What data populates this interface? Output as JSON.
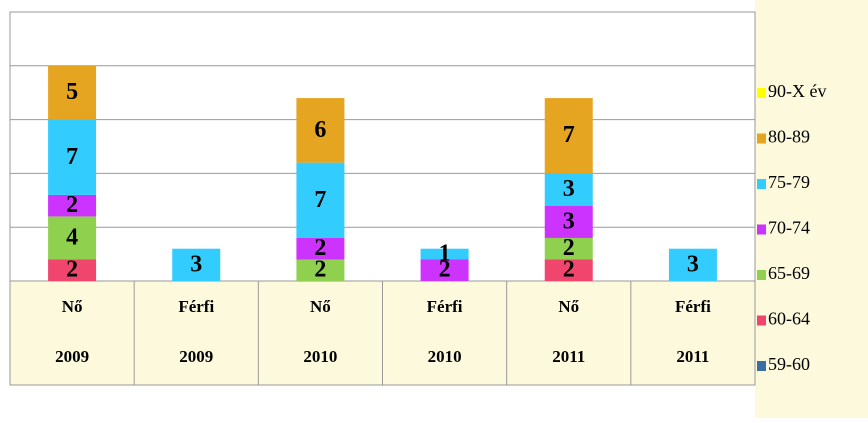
{
  "chart_data": {
    "type": "stacked_bar",
    "categories": [
      [
        "Nő",
        "2009"
      ],
      [
        "Férfi",
        "2009"
      ],
      [
        "Nő",
        "2010"
      ],
      [
        "Férfi",
        "2010"
      ],
      [
        "Nő",
        "2011"
      ],
      [
        "Férfi",
        "2011"
      ]
    ],
    "series": [
      {
        "name": "90-X év",
        "color": "#ffff00",
        "values": [
          null,
          null,
          null,
          null,
          null,
          null
        ]
      },
      {
        "name": "80-89",
        "color": "#e6a520",
        "values": [
          5,
          null,
          6,
          null,
          7,
          null
        ]
      },
      {
        "name": "75-79",
        "color": "#33ccff",
        "values": [
          7,
          3,
          7,
          1,
          3,
          3
        ]
      },
      {
        "name": "70-74",
        "color": "#cc33ff",
        "values": [
          2,
          null,
          2,
          2,
          3,
          null
        ]
      },
      {
        "name": "65-69",
        "color": "#8fd14f",
        "values": [
          4,
          null,
          2,
          null,
          2,
          null
        ]
      },
      {
        "name": "60-64",
        "color": "#f0466e",
        "values": [
          2,
          null,
          null,
          null,
          2,
          null
        ]
      },
      {
        "name": "59-60",
        "color": "#3a6ea5",
        "values": [
          null,
          null,
          null,
          null,
          null,
          null
        ]
      }
    ],
    "ylim": [
      0,
      25
    ],
    "yticks": [
      0,
      5,
      10,
      15,
      20,
      25
    ],
    "grid": true
  }
}
